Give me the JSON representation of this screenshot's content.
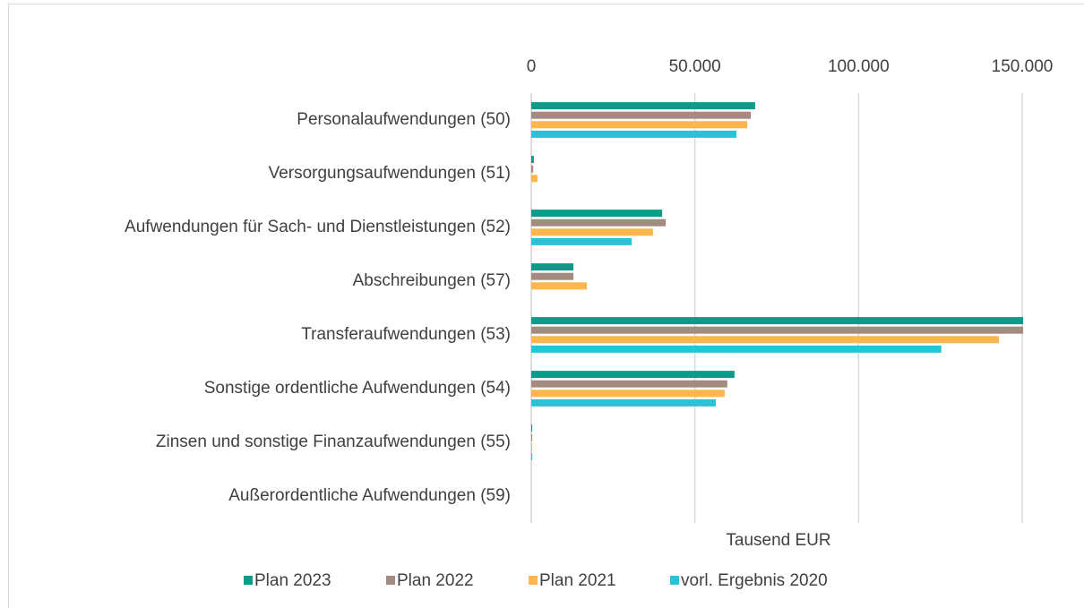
{
  "chart_data": {
    "type": "bar",
    "orientation": "horizontal",
    "categories": [
      "Personalaufwendungen (50)",
      "Versorgungsaufwendungen (51)",
      "Aufwendungen für Sach- und Dienstleistungen (52)",
      "Abschreibungen (57)",
      "Transferaufwendungen (53)",
      "Sonstige ordentliche Aufwendungen (54)",
      "Zinsen und sonstige Finanzaufwendungen (55)",
      "Außerordentliche Aufwendungen (59)"
    ],
    "series": [
      {
        "name": "Plan 2023",
        "color": "#0e9a8a",
        "values": [
          68400,
          800,
          40000,
          12900,
          150300,
          62100,
          300,
          0
        ]
      },
      {
        "name": "Plan 2022",
        "color": "#a38b80",
        "values": [
          67100,
          600,
          41100,
          12900,
          150300,
          59900,
          300,
          0
        ]
      },
      {
        "name": "Plan 2021",
        "color": "#fdb54e",
        "values": [
          66000,
          1900,
          37200,
          17000,
          142900,
          59100,
          300,
          0
        ]
      },
      {
        "name": "vorl. Ergebnis 2020",
        "color": "#27c4d8",
        "values": [
          62700,
          0,
          30700,
          0,
          125300,
          56400,
          300,
          0
        ]
      }
    ],
    "xlabel": "Tausend EUR",
    "xlim": [
      0,
      150000
    ],
    "xticks": [
      0,
      {
        "value": 50000,
        "label": "50.000"
      },
      {
        "value": 100000,
        "label": "100.000"
      },
      {
        "value": 150000,
        "label": "150.000"
      }
    ],
    "grid": true,
    "legend": "bottom"
  }
}
